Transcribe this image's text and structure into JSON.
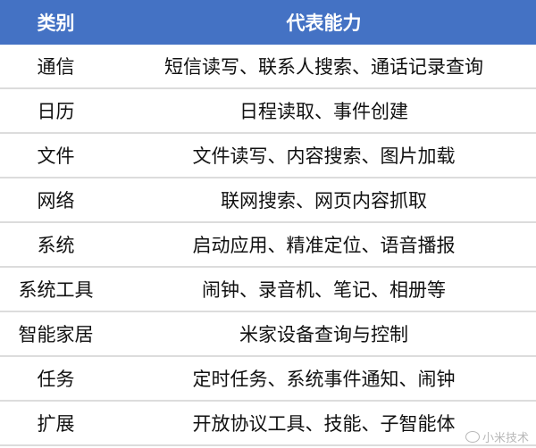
{
  "header": {
    "category": "类别",
    "capability": "代表能力"
  },
  "rows": [
    {
      "category": "通信",
      "capability": "短信读写、联系人搜索、通话记录查询"
    },
    {
      "category": "日历",
      "capability": "日程读取、事件创建"
    },
    {
      "category": "文件",
      "capability": "文件读写、内容搜索、图片加载"
    },
    {
      "category": "网络",
      "capability": "联网搜索、网页内容抓取"
    },
    {
      "category": "系统",
      "capability": "启动应用、精准定位、语音播报"
    },
    {
      "category": "系统工具",
      "capability": "闹钟、录音机、笔记、相册等"
    },
    {
      "category": "智能家居",
      "capability": "米家设备查询与控制"
    },
    {
      "category": "任务",
      "capability": "定时任务、系统事件通知、闹钟"
    },
    {
      "category": "扩展",
      "capability": "开放协议工具、技能、子智能体"
    }
  ],
  "watermark": {
    "text": "小米技术",
    "icon": "weibo-icon"
  },
  "colors": {
    "header_bg": "#4472c4",
    "header_text": "#ffffff",
    "divider": "#dcdcdc"
  }
}
